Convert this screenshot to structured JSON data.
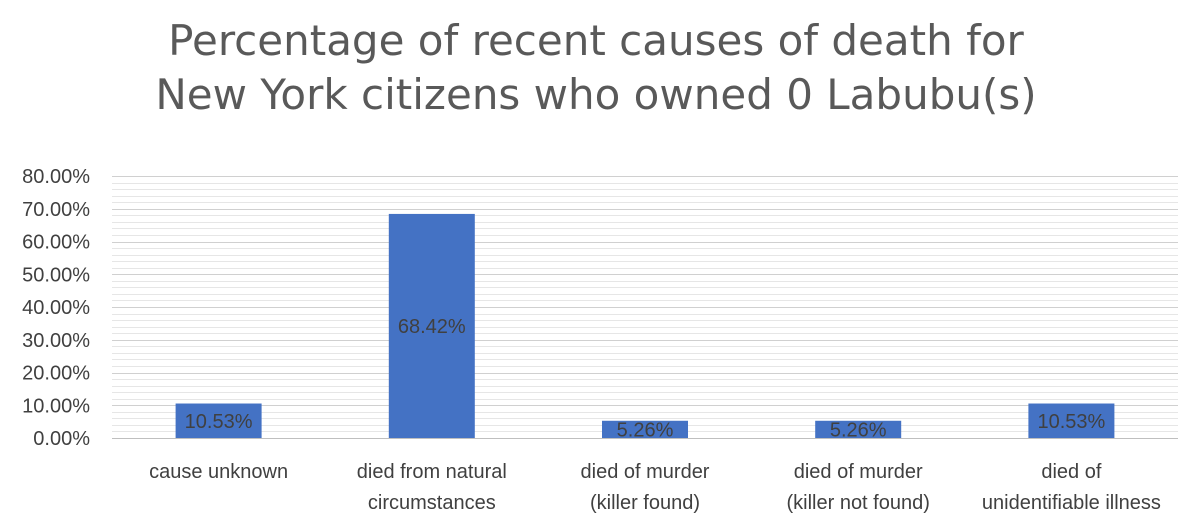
{
  "chart_data": {
    "type": "bar",
    "title_lines": [
      "Percentage of recent causes of death for",
      "New York citizens who owned 0 Labubu(s)"
    ],
    "categories": [
      [
        "cause unknown"
      ],
      [
        "died from natural",
        "circumstances"
      ],
      [
        "died of murder",
        "(killer found)"
      ],
      [
        "died of murder",
        "(killer not found)"
      ],
      [
        "died of",
        "unidentifiable illness"
      ]
    ],
    "values": [
      10.53,
      68.42,
      5.26,
      5.26,
      10.53
    ],
    "data_labels": [
      "10.53%",
      "68.42%",
      "5.26%",
      "5.26%",
      "10.53%"
    ],
    "ylim": [
      0,
      80
    ],
    "yticks": [
      0,
      10,
      20,
      30,
      40,
      50,
      60,
      70,
      80
    ],
    "ytick_labels": [
      "0.00%",
      "10.00%",
      "20.00%",
      "30.00%",
      "40.00%",
      "50.00%",
      "60.00%",
      "70.00%",
      "80.00%"
    ],
    "bar_color": "#4472C4",
    "grid": true,
    "legend": "none"
  }
}
